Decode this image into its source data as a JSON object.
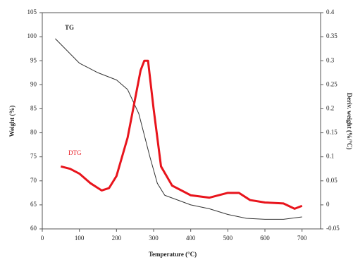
{
  "chart_data": {
    "type": "line",
    "x_label": "Temperature (°C)",
    "y_label": "Weight (%)",
    "y2_label": "Deriv. weight (%/°C)",
    "xlim": [
      0,
      750
    ],
    "xticks": [
      0,
      100,
      200,
      300,
      400,
      500,
      600,
      700
    ],
    "ylim": [
      60,
      105
    ],
    "yticks": [
      60,
      65,
      70,
      75,
      80,
      85,
      90,
      95,
      100,
      105
    ],
    "y2lim": [
      -0.05,
      0.4
    ],
    "y2ticks": [
      -0.05,
      0,
      0.05,
      0.1,
      0.15,
      0.2,
      0.25,
      0.3,
      0.35,
      0.4
    ],
    "annotations": [
      "TG",
      "DTG"
    ],
    "series": [
      {
        "name": "TG",
        "color": "#333333",
        "x": [
          35,
          100,
          150,
          200,
          230,
          260,
          290,
          310,
          330,
          400,
          450,
          500,
          550,
          600,
          650,
          700
        ],
        "values": [
          99.6,
          94.5,
          92.5,
          91,
          89,
          84,
          75,
          69.5,
          67,
          65,
          64.2,
          63,
          62.2,
          62,
          62,
          62.5
        ]
      },
      {
        "name": "DTG",
        "color": "#e8141c",
        "axis": "y2",
        "x": [
          50,
          75,
          100,
          130,
          160,
          180,
          200,
          230,
          250,
          265,
          275,
          285,
          300,
          320,
          350,
          400,
          450,
          500,
          530,
          560,
          600,
          650,
          680,
          700
        ],
        "values": [
          0.08,
          0.075,
          0.065,
          0.045,
          0.03,
          0.035,
          0.06,
          0.14,
          0.22,
          0.28,
          0.3,
          0.3,
          0.2,
          0.08,
          0.04,
          0.02,
          0.015,
          0.025,
          0.025,
          0.01,
          0.005,
          0.003,
          -0.008,
          -0.002
        ]
      }
    ]
  }
}
